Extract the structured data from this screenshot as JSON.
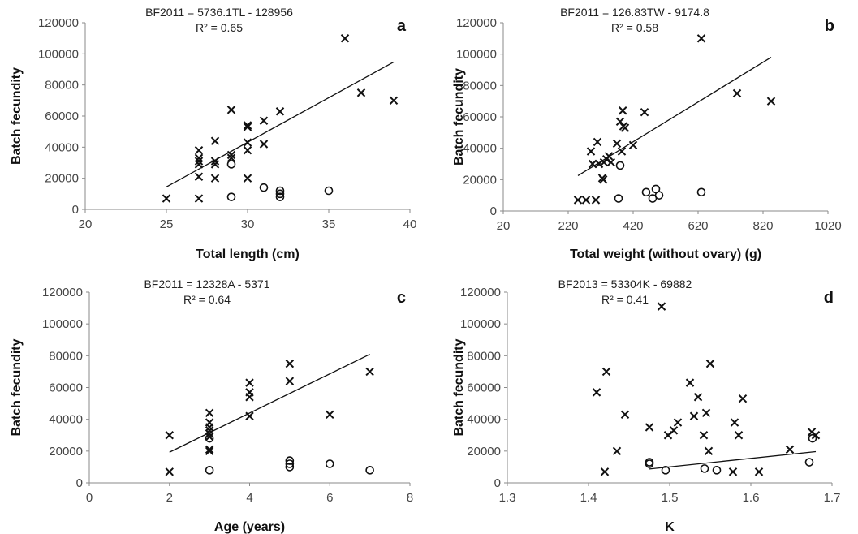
{
  "chart_data": [
    {
      "panel": "a",
      "type": "scatter",
      "equation": "BF2011 = 5736.1TL - 128956",
      "r_squared": "R² = 0.65",
      "xlabel": "Total length (cm)",
      "ylabel": "Batch fecundity",
      "xlim": [
        20,
        40
      ],
      "ylim": [
        0,
        120000
      ],
      "xticks": [
        20,
        25,
        30,
        35,
        40
      ],
      "yticks": [
        0,
        20000,
        40000,
        60000,
        80000,
        100000,
        120000
      ],
      "trendline": {
        "x": [
          25,
          39
        ],
        "y": [
          14449,
          94754
        ]
      },
      "series": [
        {
          "marker": "x",
          "points": [
            [
              25,
              7000
            ],
            [
              27,
              7000
            ],
            [
              27,
              21000
            ],
            [
              27,
              29000
            ],
            [
              27,
              31000
            ],
            [
              27,
              33000
            ],
            [
              27,
              38000
            ],
            [
              28,
              20000
            ],
            [
              28,
              29000
            ],
            [
              28,
              31000
            ],
            [
              28,
              44000
            ],
            [
              29,
              33000
            ],
            [
              29,
              35000
            ],
            [
              29,
              64000
            ],
            [
              30,
              20000
            ],
            [
              30,
              38000
            ],
            [
              30,
              43000
            ],
            [
              30,
              53000
            ],
            [
              30,
              54000
            ],
            [
              31,
              42000
            ],
            [
              31,
              57000
            ],
            [
              32,
              63000
            ],
            [
              36,
              110000
            ],
            [
              37,
              75000
            ],
            [
              39,
              70000
            ]
          ]
        },
        {
          "marker": "o",
          "points": [
            [
              29,
              29000
            ],
            [
              29,
              8000
            ],
            [
              31,
              14000
            ],
            [
              32,
              8000
            ],
            [
              32,
              10000
            ],
            [
              32,
              12000
            ],
            [
              35,
              12000
            ]
          ]
        }
      ]
    },
    {
      "panel": "b",
      "type": "scatter",
      "equation": "BF2011 = 126.83TW - 9174.8",
      "r_squared": "R² = 0.58",
      "xlabel": "Total weight (without ovary) (g)",
      "ylabel": "Batch fecundity",
      "xlim": [
        20,
        1020
      ],
      "ylim": [
        0,
        120000
      ],
      "xticks": [
        20,
        220,
        420,
        620,
        820,
        1020
      ],
      "yticks": [
        0,
        20000,
        40000,
        60000,
        80000,
        100000,
        120000
      ],
      "trendline": {
        "x": [
          250,
          845
        ],
        "y": [
          22533,
          97997
        ]
      },
      "series": [
        {
          "marker": "x",
          "points": [
            [
              250,
              7000
            ],
            [
              275,
              7000
            ],
            [
              290,
              38000
            ],
            [
              295,
              30000
            ],
            [
              305,
              7000
            ],
            [
              310,
              44000
            ],
            [
              315,
              30000
            ],
            [
              325,
              21000
            ],
            [
              328,
              20000
            ],
            [
              330,
              31000
            ],
            [
              338,
              33000
            ],
            [
              345,
              35000
            ],
            [
              352,
              31000
            ],
            [
              370,
              43000
            ],
            [
              380,
              57000
            ],
            [
              385,
              38000
            ],
            [
              388,
              64000
            ],
            [
              390,
              54000
            ],
            [
              395,
              53000
            ],
            [
              420,
              42000
            ],
            [
              455,
              63000
            ],
            [
              630,
              110000
            ],
            [
              740,
              75000
            ],
            [
              845,
              70000
            ]
          ]
        },
        {
          "marker": "o",
          "points": [
            [
              375,
              8000
            ],
            [
              380,
              29000
            ],
            [
              460,
              12000
            ],
            [
              480,
              8000
            ],
            [
              490,
              14000
            ],
            [
              500,
              10000
            ],
            [
              630,
              12000
            ]
          ]
        }
      ]
    },
    {
      "panel": "c",
      "type": "scatter",
      "equation": "BF2011 = 12328A - 5371",
      "r_squared": "R² = 0.64",
      "xlabel": "Age (years)",
      "ylabel": "Batch fecundity",
      "xlim": [
        0,
        8
      ],
      "ylim": [
        0,
        120000
      ],
      "xticks": [
        0,
        2,
        4,
        6,
        8
      ],
      "yticks": [
        0,
        20000,
        40000,
        60000,
        80000,
        100000,
        120000
      ],
      "trendline": {
        "x": [
          2,
          7
        ],
        "y": [
          19285,
          80925
        ]
      },
      "series": [
        {
          "marker": "x",
          "points": [
            [
              2,
              7000
            ],
            [
              2,
              30000
            ],
            [
              3,
              20000
            ],
            [
              3,
              21000
            ],
            [
              3,
              29000
            ],
            [
              3,
              31000
            ],
            [
              3,
              33000
            ],
            [
              3,
              35000
            ],
            [
              3,
              38000
            ],
            [
              3,
              44000
            ],
            [
              4,
              42000
            ],
            [
              4,
              54000
            ],
            [
              4,
              57000
            ],
            [
              4,
              63000
            ],
            [
              5,
              64000
            ],
            [
              5,
              75000
            ],
            [
              6,
              43000
            ],
            [
              7,
              70000
            ]
          ]
        },
        {
          "marker": "o",
          "points": [
            [
              3,
              8000
            ],
            [
              3,
              28000
            ],
            [
              5,
              10000
            ],
            [
              5,
              12000
            ],
            [
              5,
              14000
            ],
            [
              6,
              12000
            ],
            [
              7,
              8000
            ]
          ]
        }
      ]
    },
    {
      "panel": "d",
      "type": "scatter",
      "equation": "BF2013 = 53304K - 69882",
      "r_squared": "R² = 0.41",
      "xlabel": "K",
      "ylabel": "Batch fecundity",
      "xlim": [
        1.3,
        1.7
      ],
      "ylim": [
        0,
        120000
      ],
      "xticks": [
        "1.3",
        "1.4",
        "1.5",
        "1.6",
        "1.7"
      ],
      "yticks": [
        0,
        20000,
        40000,
        60000,
        80000,
        100000,
        120000
      ],
      "trendline": {
        "x": [
          1.475,
          1.68
        ],
        "y": [
          8742,
          19669
        ]
      },
      "series": [
        {
          "marker": "x",
          "points": [
            [
              1.41,
              57000
            ],
            [
              1.42,
              7000
            ],
            [
              1.422,
              70000
            ],
            [
              1.435,
              20000
            ],
            [
              1.445,
              43000
            ],
            [
              1.475,
              35000
            ],
            [
              1.49,
              111000
            ],
            [
              1.498,
              30000
            ],
            [
              1.505,
              33000
            ],
            [
              1.51,
              38000
            ],
            [
              1.525,
              63000
            ],
            [
              1.53,
              42000
            ],
            [
              1.535,
              54000
            ],
            [
              1.542,
              30000
            ],
            [
              1.545,
              44000
            ],
            [
              1.548,
              20000
            ],
            [
              1.55,
              75000
            ],
            [
              1.578,
              7000
            ],
            [
              1.58,
              38000
            ],
            [
              1.585,
              30000
            ],
            [
              1.59,
              53000
            ],
            [
              1.61,
              7000
            ],
            [
              1.648,
              21000
            ],
            [
              1.675,
              32000
            ],
            [
              1.68,
              30000
            ]
          ]
        },
        {
          "marker": "o",
          "points": [
            [
              1.475,
              12000
            ],
            [
              1.475,
              13000
            ],
            [
              1.495,
              8000
            ],
            [
              1.543,
              9000
            ],
            [
              1.558,
              8000
            ],
            [
              1.672,
              13000
            ],
            [
              1.676,
              28000
            ]
          ]
        }
      ]
    }
  ]
}
